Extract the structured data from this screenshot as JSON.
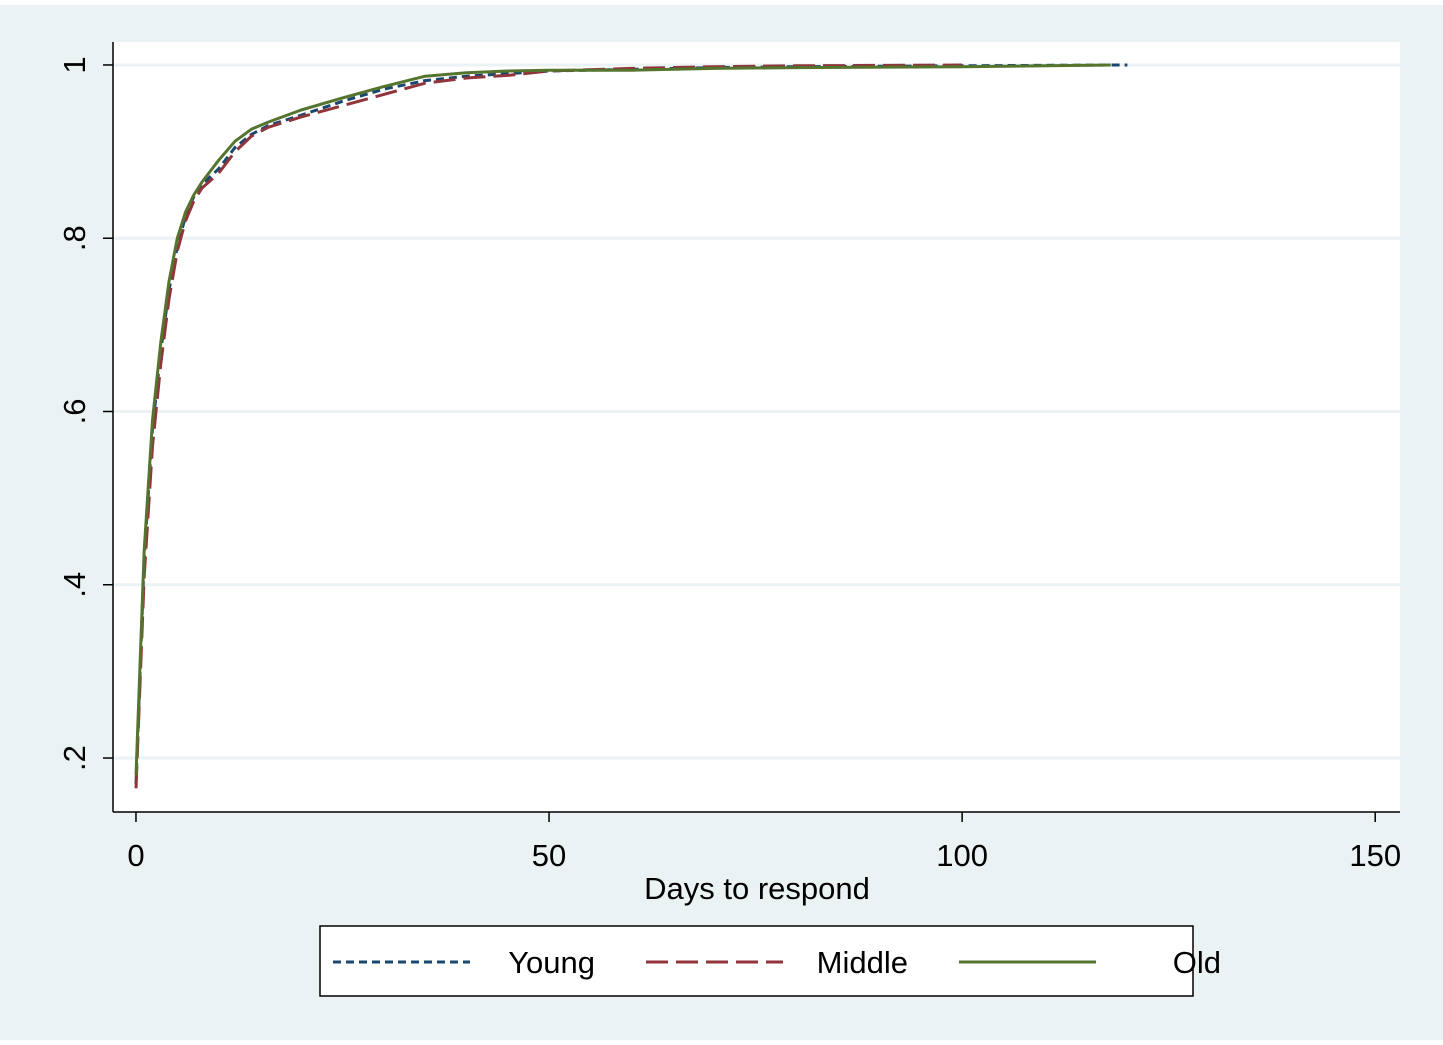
{
  "chart_data": {
    "type": "line",
    "xlabel": "Days to respond",
    "x": [
      0,
      1,
      2,
      3,
      4,
      5,
      6,
      7,
      8,
      10,
      12,
      14,
      16,
      20,
      25,
      30,
      35,
      40,
      45,
      50,
      60,
      70,
      80,
      100,
      118,
      120
    ],
    "series": [
      {
        "name": "Young",
        "color": "#1a476f",
        "dash": "short",
        "values": [
          0.17,
          0.43,
          0.58,
          0.67,
          0.74,
          0.79,
          0.825,
          0.848,
          0.862,
          0.88,
          0.905,
          0.92,
          0.93,
          0.942,
          0.958,
          0.972,
          0.982,
          0.987,
          0.99,
          0.993,
          0.995,
          0.997,
          0.998,
          0.999,
          1.0,
          1.0
        ]
      },
      {
        "name": "Middle",
        "color": "#90353b",
        "dash": "long",
        "values": [
          0.165,
          0.41,
          0.56,
          0.655,
          0.73,
          0.785,
          0.82,
          0.843,
          0.858,
          0.875,
          0.9,
          0.918,
          0.928,
          0.94,
          0.953,
          0.966,
          0.979,
          0.985,
          0.988,
          0.993,
          0.996,
          0.998,
          0.999,
          1.0,
          null,
          null
        ]
      },
      {
        "name": "Old",
        "color": "#55752f",
        "dash": "solid",
        "values": [
          0.18,
          0.44,
          0.59,
          0.68,
          0.75,
          0.8,
          0.83,
          0.85,
          0.865,
          0.89,
          0.912,
          0.926,
          0.934,
          0.948,
          0.962,
          0.975,
          0.987,
          0.991,
          0.993,
          0.994,
          0.994,
          0.996,
          0.997,
          0.998,
          1.0,
          null
        ]
      }
    ],
    "xlim": [
      -2.78,
      153.0
    ],
    "xticks": [
      0,
      50,
      100,
      150
    ],
    "ylim": [
      0.1377,
      1.0265
    ],
    "yticks": [
      {
        "value": 0.2,
        "label": ".2"
      },
      {
        "value": 0.4,
        "label": ".4"
      },
      {
        "value": 0.6,
        "label": ".6"
      },
      {
        "value": 0.8,
        "label": ".8"
      },
      1
    ],
    "grid": true
  }
}
